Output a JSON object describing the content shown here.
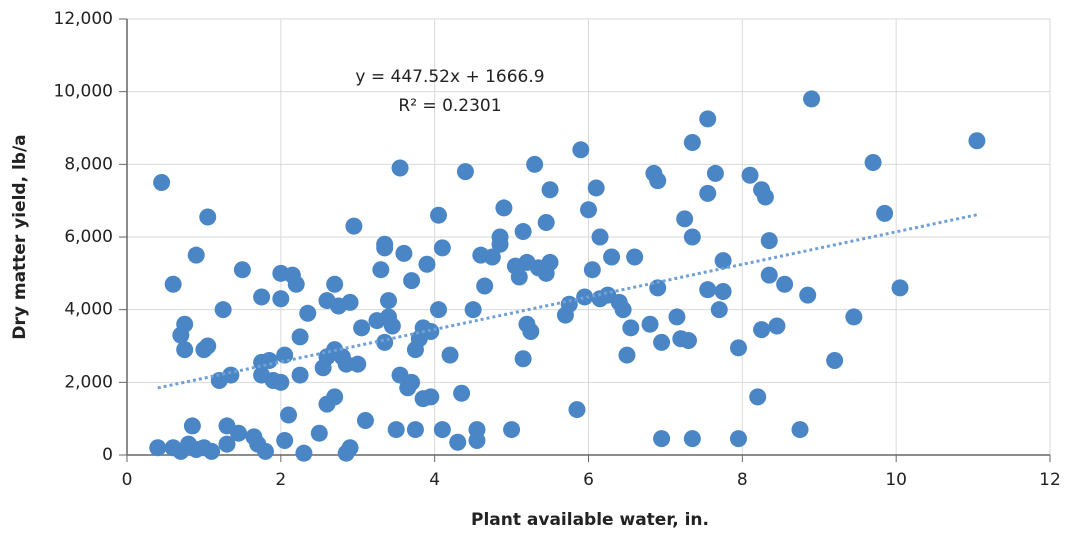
{
  "chart_data": {
    "type": "scatter",
    "xlabel": "Plant available water, in.",
    "ylabel": "Dry matter yield, lb/a",
    "annotations": [
      "y = 447.52x + 1666.9",
      "R² = 0.2301"
    ],
    "trendline": {
      "slope": 447.52,
      "intercept": 1666.9,
      "x": [
        0.4,
        11.05
      ],
      "color": "#6fa0d6"
    },
    "color": "#4a86c5",
    "grid": true,
    "xlim": [
      0,
      12
    ],
    "xticks": [
      0,
      2,
      4,
      6,
      8,
      10,
      12
    ],
    "ylim": [
      0,
      12000
    ],
    "yticks": [
      0,
      {
        "value": 2000,
        "label": "2,000"
      },
      {
        "value": 4000,
        "label": "4,000"
      },
      {
        "value": 6000,
        "label": "6,000"
      },
      {
        "value": 8000,
        "label": "8,000"
      },
      {
        "value": 10000,
        "label": "10,000"
      },
      {
        "value": 12000,
        "label": "12,000"
      }
    ],
    "x": [
      0.4,
      0.45,
      0.6,
      0.6,
      0.7,
      0.75,
      0.75,
      0.7,
      0.8,
      0.9,
      0.85,
      0.9,
      1.0,
      1.05,
      1.05,
      1.0,
      1.1,
      1.2,
      1.25,
      1.3,
      1.35,
      1.3,
      1.45,
      1.5,
      1.65,
      1.7,
      1.75,
      1.75,
      1.75,
      1.8,
      1.85,
      1.9,
      2.0,
      2.0,
      2.0,
      2.05,
      2.1,
      2.05,
      2.15,
      2.2,
      2.25,
      2.25,
      2.3,
      2.35,
      2.5,
      2.55,
      2.6,
      2.6,
      2.6,
      2.7,
      2.7,
      2.7,
      2.75,
      2.8,
      2.85,
      2.85,
      2.9,
      2.95,
      2.9,
      3.0,
      3.05,
      3.1,
      3.25,
      3.3,
      3.35,
      3.35,
      3.35,
      3.4,
      3.4,
      3.45,
      3.5,
      3.55,
      3.55,
      3.6,
      3.65,
      3.7,
      3.7,
      3.75,
      3.75,
      3.8,
      3.85,
      3.85,
      3.9,
      3.95,
      3.95,
      4.05,
      4.05,
      4.1,
      4.1,
      4.2,
      4.3,
      4.35,
      4.4,
      4.5,
      4.55,
      4.55,
      4.6,
      4.65,
      4.75,
      4.85,
      4.85,
      4.9,
      5.0,
      5.05,
      5.1,
      5.15,
      5.15,
      5.2,
      5.2,
      5.25,
      5.3,
      5.35,
      5.45,
      5.45,
      5.5,
      5.5,
      5.7,
      5.75,
      5.85,
      5.9,
      5.95,
      6.0,
      6.05,
      6.1,
      6.15,
      6.15,
      6.25,
      6.3,
      6.4,
      6.45,
      6.5,
      6.55,
      6.6,
      6.8,
      6.85,
      6.9,
      6.9,
      6.95,
      6.95,
      7.15,
      7.2,
      7.25,
      7.3,
      7.35,
      7.35,
      7.35,
      7.55,
      7.55,
      7.55,
      7.65,
      7.7,
      7.75,
      7.75,
      7.95,
      7.95,
      8.1,
      8.2,
      8.25,
      8.25,
      8.3,
      8.35,
      8.35,
      8.45,
      8.55,
      8.75,
      8.85,
      8.9,
      9.2,
      9.45,
      9.7,
      9.85,
      10.05,
      11.05
    ],
    "y": [
      200,
      7500,
      4700,
      200,
      3300,
      3600,
      2900,
      100,
      300,
      5500,
      800,
      150,
      2900,
      3000,
      6550,
      200,
      100,
      2050,
      4000,
      800,
      2200,
      300,
      600,
      5100,
      500,
      300,
      2200,
      4350,
      2550,
      100,
      2600,
      2050,
      2000,
      4300,
      5000,
      400,
      1100,
      2750,
      4950,
      4700,
      3250,
      2200,
      50,
      3900,
      600,
      2400,
      2700,
      4250,
      1400,
      4700,
      1600,
      2900,
      4100,
      2700,
      2500,
      50,
      4200,
      6300,
      200,
      2500,
      3500,
      950,
      3700,
      5100,
      5700,
      5800,
      3100,
      4250,
      3800,
      3550,
      700,
      7900,
      2200,
      5550,
      1850,
      2000,
      4800,
      2900,
      700,
      3200,
      1550,
      3500,
      5250,
      1600,
      3400,
      4000,
      6600,
      700,
      5700,
      2750,
      350,
      1700,
      7800,
      4000,
      400,
      700,
      5500,
      4650,
      5450,
      5800,
      6000,
      6800,
      700,
      5200,
      4900,
      2650,
      6150,
      5300,
      3600,
      3400,
      8000,
      5150,
      6400,
      5000,
      5300,
      7300,
      3850,
      4150,
      1250,
      8400,
      4350,
      6750,
      5100,
      7350,
      6000,
      4300,
      4400,
      5450,
      4200,
      4000,
      2750,
      3500,
      5450,
      3600,
      7750,
      7550,
      4600,
      450,
      3100,
      3800,
      3200,
      6500,
      3150,
      6000,
      8600,
      450,
      9250,
      4550,
      7200,
      7750,
      4000,
      4500,
      5350,
      450,
      2950,
      7700,
      1600,
      3450,
      7300,
      7100,
      4950,
      5900,
      3550,
      4700,
      700,
      4400,
      9800,
      2600,
      3800,
      8050,
      6650,
      4600,
      8650
    ]
  }
}
